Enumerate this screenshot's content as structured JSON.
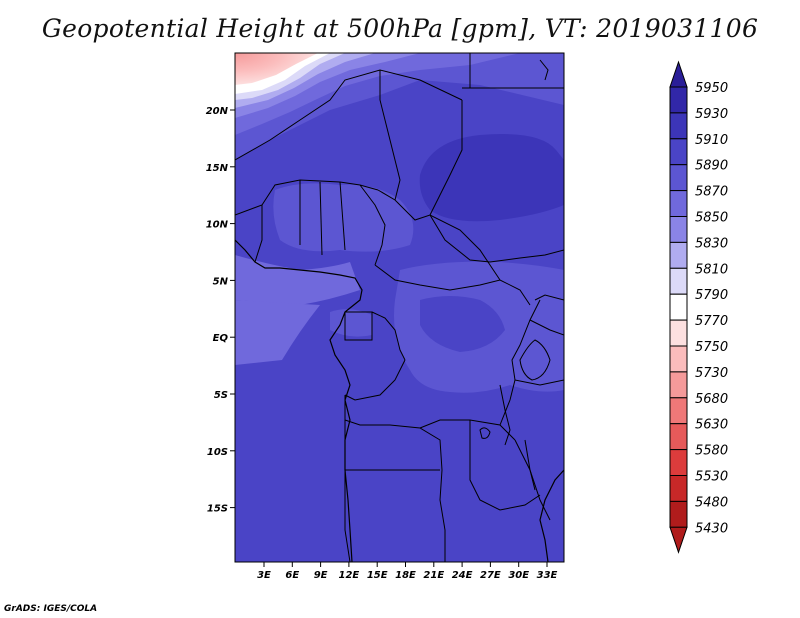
{
  "title": "Geopotential Height at 500hPa [gpm], VT: 2019031106",
  "credit": "GrADS: IGES/COLA",
  "map": {
    "lon_ticks": [
      "3E",
      "6E",
      "9E",
      "12E",
      "15E",
      "18E",
      "21E",
      "24E",
      "27E",
      "30E",
      "33E"
    ],
    "lat_ticks": [
      "20N",
      "15N",
      "10N",
      "5N",
      "EQ",
      "5S",
      "10S",
      "15S"
    ]
  },
  "colorbar": {
    "levels": [
      "5950",
      "5930",
      "5910",
      "5890",
      "5870",
      "5850",
      "5830",
      "5810",
      "5790",
      "5770",
      "5750",
      "5730",
      "5680",
      "5630",
      "5580",
      "5530",
      "5480",
      "5430"
    ],
    "colors": {
      "c5950": "#2a1e98",
      "c5930": "#3127a8",
      "c5910": "#3c35b8",
      "c5890": "#4a44c6",
      "c5870": "#5c56d2",
      "c5850": "#7069dc",
      "c5830": "#8a84e6",
      "c5810": "#b0acf0",
      "c5790": "#dcdaf8",
      "c5770": "#ffffff",
      "c5750": "#fde0e0",
      "c5730": "#fbbcbc",
      "c5680": "#f59a9a",
      "c5630": "#ef7878",
      "c5580": "#e65a5a",
      "c5530": "#dc3c3c",
      "c5480": "#c82828",
      "c5430": "#b01c1c"
    }
  }
}
